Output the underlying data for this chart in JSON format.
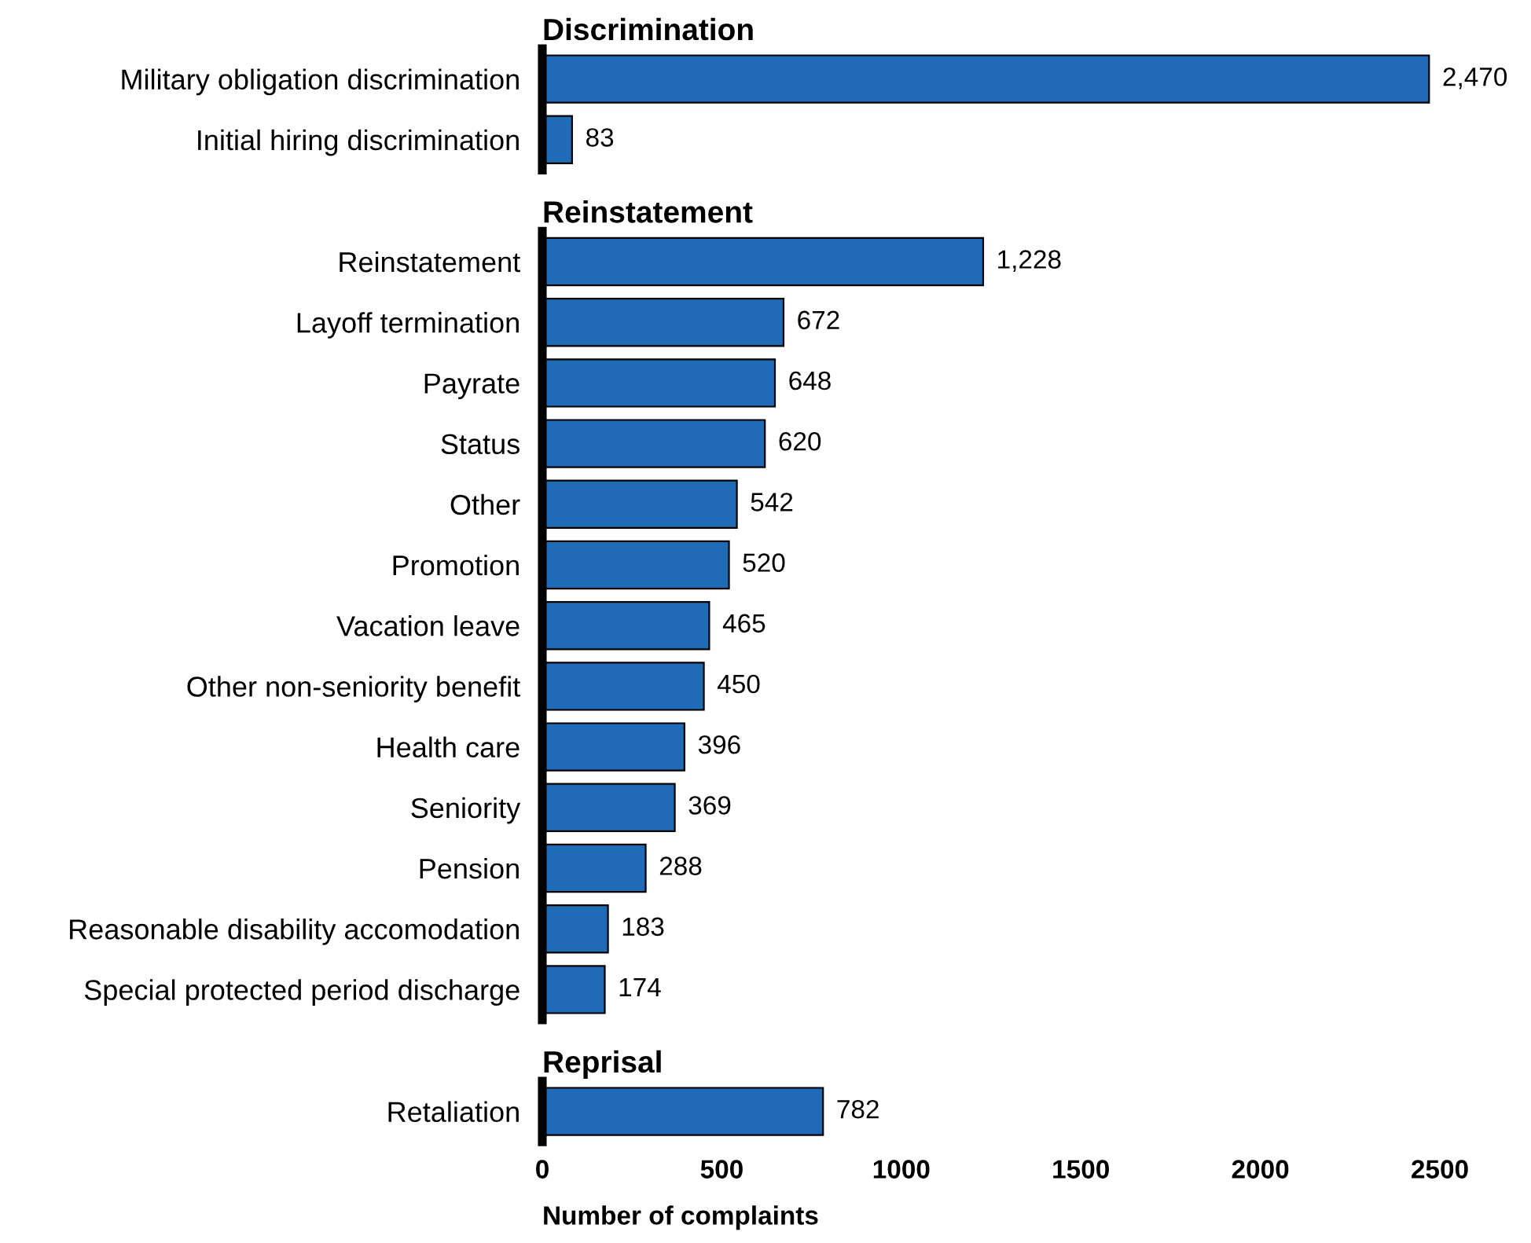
{
  "chart_data": [
    {
      "type": "bar",
      "orientation": "horizontal",
      "title": "Discrimination",
      "categories": [
        "Military obligation discrimination",
        "Initial hiring discrimination"
      ],
      "values": [
        2470,
        83
      ],
      "value_labels": [
        "2,470",
        "83"
      ],
      "color": "#1f6bb5",
      "xlim": [
        0,
        2500
      ],
      "xticks": [
        0,
        500,
        1000,
        1500,
        2000,
        2500
      ],
      "tick_labels": "y"
    },
    {
      "type": "bar",
      "orientation": "horizontal",
      "title": "Reinstatement",
      "categories": [
        "Reinstatement",
        "Layoff termination",
        "Payrate",
        "Status",
        "Other",
        "Promotion",
        "Vacation leave",
        "Other non-seniority benefit",
        "Health care",
        "Seniority",
        "Pension",
        "Reasonable disability accomodation",
        "Special protected period discharge"
      ],
      "values": [
        1228,
        672,
        648,
        620,
        542,
        520,
        465,
        450,
        396,
        369,
        288,
        183,
        174
      ],
      "value_labels": [
        "1,228",
        "672",
        "648",
        "620",
        "542",
        "520",
        "465",
        "450",
        "396",
        "369",
        "288",
        "183",
        "174"
      ],
      "color": "#1f6bb5",
      "xlim": [
        0,
        2500
      ],
      "xticks": [
        0,
        500,
        1000,
        1500,
        2000,
        2500
      ],
      "tick_labels": "y"
    },
    {
      "type": "bar",
      "orientation": "horizontal",
      "title": "Reprisal",
      "categories": [
        "Retaliation"
      ],
      "values": [
        782
      ],
      "value_labels": [
        "782"
      ],
      "color": "#1f6bb5",
      "xlim": [
        0,
        2500
      ],
      "xticks": [
        0,
        500,
        1000,
        1500,
        2000,
        2500
      ],
      "xlabel": "Number of complaints"
    }
  ]
}
